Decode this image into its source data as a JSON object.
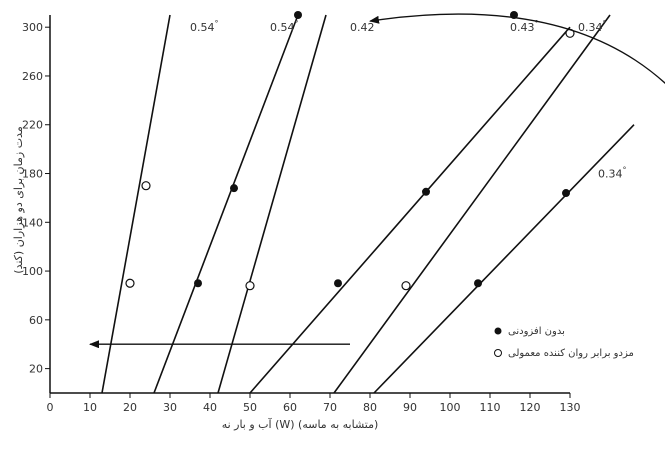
{
  "chart_data": {
    "type": "scatter",
    "xlabel": "آب و بار نه (W) (متشابه به ماسه)",
    "ylabel": "مدت زمان برای دو هزاران (کند)",
    "xlim": [
      0,
      130
    ],
    "ylim": [
      0,
      310
    ],
    "xticks": [
      0,
      10,
      20,
      30,
      40,
      50,
      60,
      70,
      80,
      90,
      100,
      110,
      120,
      130
    ],
    "yticks": [
      20,
      60,
      100,
      140,
      180,
      220,
      260,
      300
    ],
    "lines": [
      {
        "label": "0.54",
        "from": [
          13,
          0
        ],
        "to": [
          30,
          310
        ],
        "label_at": [
          35,
          300
        ]
      },
      {
        "label": "0.54",
        "from": [
          26,
          0
        ],
        "to": [
          62,
          310
        ],
        "label_at": [
          55,
          300
        ]
      },
      {
        "label": "0.42",
        "from": [
          42,
          0
        ],
        "to": [
          69,
          310
        ],
        "label_at": [
          75,
          300
        ]
      },
      {
        "label": "",
        "from": [
          50,
          0
        ],
        "to": [
          130,
          300
        ],
        "label_at": null
      },
      {
        "label": "0.43",
        "from": [
          71,
          0
        ],
        "to": [
          140,
          310
        ],
        "label_at": [
          115,
          300
        ]
      },
      {
        "label": "0.34",
        "from": [
          81,
          0
        ],
        "to": [
          146,
          220
        ],
        "label_at": [
          137,
          180
        ]
      }
    ],
    "extra_labels": [
      {
        "text": "0.34",
        "at": [
          130,
          300
        ]
      }
    ],
    "points_filled": [
      [
        37,
        90
      ],
      [
        46,
        168
      ],
      [
        62,
        310
      ],
      [
        72,
        90
      ],
      [
        94,
        165
      ],
      [
        116,
        310
      ],
      [
        107,
        90
      ],
      [
        129,
        164
      ]
    ],
    "points_open": [
      [
        20,
        90
      ],
      [
        24,
        170
      ],
      [
        50,
        88
      ],
      [
        89,
        88
      ],
      [
        130,
        295
      ]
    ],
    "arrow_left": {
      "from": [
        75,
        40
      ],
      "to": [
        10,
        40
      ]
    },
    "arrow_curve": {
      "start": [
        150,
        185
      ],
      "end": [
        82,
        305
      ]
    },
    "legend": [
      {
        "marker": "filled",
        "label": "بدون افزودنی"
      },
      {
        "marker": "open",
        "label": "مزدو برابر روان کننده معمولی"
      }
    ]
  }
}
